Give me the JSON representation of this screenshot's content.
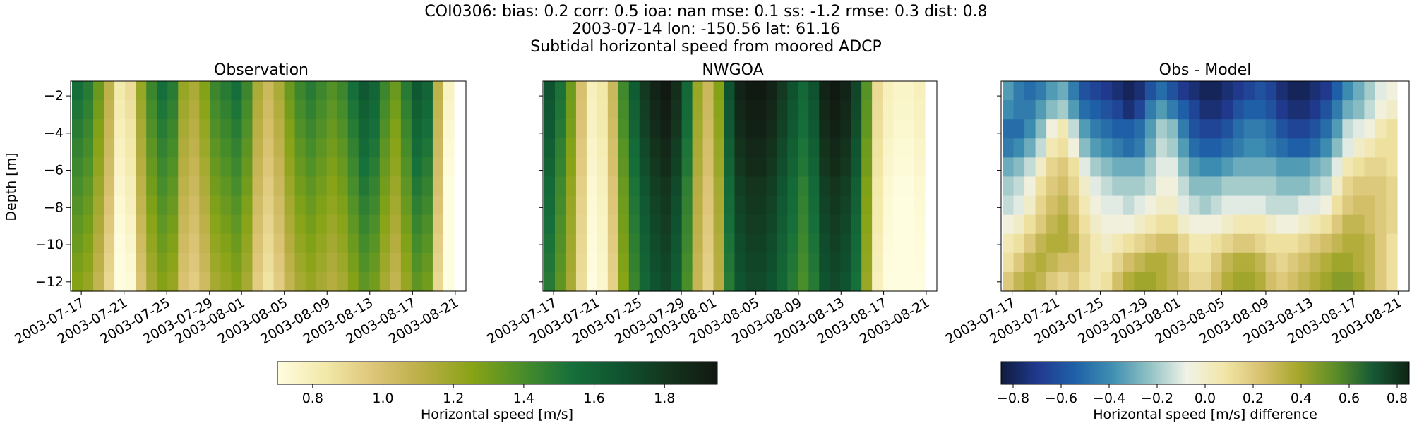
{
  "figure": {
    "title_lines": [
      "COI0306: bias: 0.2  corr: 0.5  ioa: nan  mse: 0.1  ss: -1.2  rmse: 0.3  dist: 0.8",
      "2003-07-14 lon: -150.56 lat: 61.16",
      "Subtidal horizontal speed from moored ADCP"
    ]
  },
  "chart_data": [
    {
      "type": "heatmap",
      "title": "Observation",
      "ylabel": "Depth [m]",
      "xlabel": "",
      "x_ticks": [
        "2003-07-17",
        "2003-07-21",
        "2003-07-25",
        "2003-07-29",
        "2003-08-01",
        "2003-08-05",
        "2003-08-09",
        "2003-08-13",
        "2003-08-17",
        "2003-08-21"
      ],
      "y_ticks": [
        -2,
        -4,
        -6,
        -8,
        -10,
        -12
      ],
      "ylim": [
        -12.5,
        -1.2
      ],
      "time_range": [
        "2003-07-16",
        "2003-08-22"
      ],
      "depth_range": [
        -12.5,
        -1.2
      ],
      "colormap": "speed",
      "rows": 11,
      "columns": 36,
      "values_by_day": [
        1.4,
        1.35,
        1.2,
        1.0,
        0.75,
        0.8,
        1.1,
        1.3,
        1.4,
        1.35,
        1.1,
        1.05,
        1.15,
        1.3,
        1.35,
        1.4,
        1.3,
        1.05,
        0.95,
        1.05,
        1.2,
        1.3,
        1.35,
        1.3,
        1.25,
        1.3,
        1.4,
        1.5,
        1.45,
        1.3,
        1.2,
        1.35,
        1.5,
        1.45,
        1.0,
        0.7
      ],
      "depth_factor": [
        1.1,
        1.08,
        1.06,
        1.04,
        1.02,
        1.0,
        0.98,
        0.96,
        0.94,
        0.92,
        0.9
      ],
      "grid": false
    },
    {
      "type": "heatmap",
      "title": "NWGOA",
      "xlabel": "",
      "x_ticks": [
        "2003-07-17",
        "2003-07-21",
        "2003-07-25",
        "2003-07-29",
        "2003-08-01",
        "2003-08-05",
        "2003-08-09",
        "2003-08-13",
        "2003-08-17",
        "2003-08-21"
      ],
      "y_ticks": [
        -2,
        -4,
        -6,
        -8,
        -10,
        -12
      ],
      "ylim": [
        -12.5,
        -1.2
      ],
      "time_range": [
        "2003-07-16",
        "2003-08-22"
      ],
      "depth_range": [
        -12.5,
        -1.2
      ],
      "colormap": "speed",
      "rows": 11,
      "columns": 36,
      "values_by_day": [
        1.6,
        1.45,
        1.25,
        0.95,
        0.75,
        0.8,
        1.0,
        1.35,
        1.55,
        1.7,
        1.8,
        1.85,
        1.75,
        1.5,
        1.15,
        1.0,
        1.2,
        1.6,
        1.8,
        1.85,
        1.85,
        1.8,
        1.7,
        1.6,
        1.5,
        1.6,
        1.8,
        1.85,
        1.8,
        1.65,
        1.3,
        0.85,
        0.75,
        0.72,
        0.72,
        0.75
      ],
      "depth_factor": [
        1.05,
        1.04,
        1.03,
        1.01,
        1.0,
        0.98,
        0.97,
        0.96,
        0.95,
        0.94,
        0.93
      ],
      "grid": false
    },
    {
      "type": "heatmap",
      "title": "Obs - Model",
      "xlabel": "",
      "x_ticks": [
        "2003-07-17",
        "2003-07-21",
        "2003-07-25",
        "2003-07-29",
        "2003-08-01",
        "2003-08-05",
        "2003-08-09",
        "2003-08-13",
        "2003-08-17",
        "2003-08-21"
      ],
      "y_ticks": [
        -2,
        -4,
        -6,
        -8,
        -10,
        -12
      ],
      "ylim": [
        -12.5,
        -1.2
      ],
      "time_range": [
        "2003-07-16",
        "2003-08-22"
      ],
      "depth_range": [
        -12.5,
        -1.2
      ],
      "colormap": "diff",
      "rows": 11,
      "columns": 36,
      "values_by_row": [
        [
          -0.35,
          -0.45,
          -0.5,
          -0.45,
          -0.35,
          -0.3,
          -0.45,
          -0.6,
          -0.65,
          -0.7,
          -0.75,
          -0.8,
          -0.75,
          -0.6,
          -0.5,
          -0.6,
          -0.7,
          -0.75,
          -0.8,
          -0.8,
          -0.75,
          -0.7,
          -0.65,
          -0.6,
          -0.65,
          -0.75,
          -0.8,
          -0.8,
          -0.75,
          -0.7,
          -0.55,
          -0.4,
          -0.3,
          -0.2,
          -0.1,
          -0.05
        ],
        [
          -0.4,
          -0.45,
          -0.45,
          -0.35,
          -0.25,
          -0.2,
          -0.35,
          -0.5,
          -0.55,
          -0.6,
          -0.65,
          -0.75,
          -0.65,
          -0.45,
          -0.35,
          -0.45,
          -0.55,
          -0.65,
          -0.75,
          -0.75,
          -0.7,
          -0.6,
          -0.55,
          -0.55,
          -0.6,
          -0.7,
          -0.75,
          -0.75,
          -0.7,
          -0.6,
          -0.45,
          -0.3,
          -0.25,
          -0.15,
          -0.05,
          0.0
        ],
        [
          -0.5,
          -0.5,
          -0.4,
          -0.25,
          -0.05,
          0.05,
          -0.15,
          -0.35,
          -0.45,
          -0.5,
          -0.55,
          -0.55,
          -0.5,
          -0.35,
          -0.2,
          -0.25,
          -0.45,
          -0.6,
          -0.65,
          -0.65,
          -0.6,
          -0.5,
          -0.45,
          -0.45,
          -0.5,
          -0.6,
          -0.65,
          -0.65,
          -0.6,
          -0.5,
          -0.35,
          -0.15,
          -0.1,
          -0.05,
          0.05,
          0.1
        ],
        [
          -0.45,
          -0.4,
          -0.3,
          -0.15,
          0.05,
          0.1,
          -0.05,
          -0.25,
          -0.35,
          -0.4,
          -0.45,
          -0.5,
          -0.45,
          -0.3,
          -0.15,
          -0.2,
          -0.35,
          -0.5,
          -0.55,
          -0.55,
          -0.5,
          -0.45,
          -0.4,
          -0.4,
          -0.45,
          -0.5,
          -0.55,
          -0.55,
          -0.5,
          -0.4,
          -0.25,
          -0.1,
          0.0,
          0.05,
          0.1,
          0.1
        ],
        [
          -0.3,
          -0.25,
          -0.15,
          0.0,
          0.15,
          0.2,
          0.1,
          -0.1,
          -0.2,
          -0.25,
          -0.3,
          -0.3,
          -0.3,
          -0.2,
          -0.1,
          -0.1,
          -0.25,
          -0.35,
          -0.4,
          -0.4,
          -0.35,
          -0.3,
          -0.3,
          -0.3,
          -0.3,
          -0.35,
          -0.35,
          -0.35,
          -0.3,
          -0.25,
          -0.1,
          0.05,
          0.1,
          0.15,
          0.15,
          0.1
        ],
        [
          -0.2,
          -0.15,
          -0.05,
          0.1,
          0.2,
          0.25,
          0.15,
          0.0,
          -0.1,
          -0.15,
          -0.2,
          -0.2,
          -0.2,
          -0.15,
          -0.05,
          -0.05,
          -0.15,
          -0.25,
          -0.25,
          -0.25,
          -0.2,
          -0.2,
          -0.2,
          -0.2,
          -0.2,
          -0.25,
          -0.25,
          -0.25,
          -0.2,
          -0.15,
          0.0,
          0.15,
          0.2,
          0.2,
          0.2,
          0.15
        ],
        [
          -0.15,
          -0.1,
          0.0,
          0.15,
          0.25,
          0.3,
          0.2,
          0.05,
          -0.05,
          -0.1,
          -0.1,
          -0.15,
          -0.1,
          -0.05,
          0.0,
          0.0,
          -0.1,
          -0.15,
          -0.2,
          -0.15,
          -0.1,
          -0.1,
          -0.1,
          -0.1,
          -0.15,
          -0.15,
          -0.15,
          -0.1,
          -0.1,
          -0.05,
          0.1,
          0.2,
          0.25,
          0.25,
          0.2,
          0.15
        ],
        [
          -0.05,
          0.0,
          0.1,
          0.2,
          0.3,
          0.35,
          0.25,
          0.1,
          0.0,
          -0.05,
          -0.05,
          -0.05,
          0.0,
          0.05,
          0.1,
          0.1,
          0.0,
          -0.05,
          -0.05,
          -0.05,
          0.0,
          0.05,
          0.05,
          0.05,
          0.0,
          -0.05,
          -0.05,
          0.0,
          0.05,
          0.1,
          0.2,
          0.3,
          0.3,
          0.25,
          0.2,
          0.15
        ],
        [
          0.05,
          0.1,
          0.2,
          0.3,
          0.35,
          0.35,
          0.3,
          0.15,
          0.05,
          0.0,
          0.05,
          0.1,
          0.15,
          0.2,
          0.25,
          0.25,
          0.15,
          0.05,
          0.05,
          0.1,
          0.15,
          0.2,
          0.2,
          0.15,
          0.1,
          0.1,
          0.1,
          0.15,
          0.2,
          0.25,
          0.3,
          0.35,
          0.35,
          0.3,
          0.2,
          0.1
        ],
        [
          0.1,
          0.2,
          0.3,
          0.35,
          0.3,
          0.25,
          0.25,
          0.15,
          0.05,
          0.05,
          0.15,
          0.25,
          0.3,
          0.35,
          0.35,
          0.3,
          0.2,
          0.1,
          0.1,
          0.2,
          0.3,
          0.35,
          0.35,
          0.3,
          0.2,
          0.15,
          0.2,
          0.25,
          0.3,
          0.35,
          0.4,
          0.4,
          0.35,
          0.3,
          0.2,
          0.1
        ],
        [
          0.2,
          0.3,
          0.35,
          0.3,
          0.2,
          0.15,
          0.2,
          0.1,
          0.05,
          0.1,
          0.25,
          0.35,
          0.4,
          0.4,
          0.35,
          0.3,
          0.25,
          0.15,
          0.15,
          0.25,
          0.35,
          0.4,
          0.4,
          0.35,
          0.25,
          0.2,
          0.25,
          0.3,
          0.35,
          0.4,
          0.45,
          0.45,
          0.4,
          0.3,
          0.2,
          0.1
        ]
      ],
      "grid": false
    }
  ],
  "colorbars": [
    {
      "label": "Horizontal speed [m/s]",
      "range": [
        0.7,
        1.95
      ],
      "ticks": [
        0.8,
        1.0,
        1.2,
        1.4,
        1.6,
        1.8
      ],
      "tick_labels": [
        "0.8",
        "1.0",
        "1.2",
        "1.4",
        "1.6",
        "1.8"
      ],
      "colormap": "speed"
    },
    {
      "label": "Horizontal speed [m/s] difference",
      "range": [
        -0.85,
        0.85
      ],
      "ticks": [
        -0.8,
        -0.6,
        -0.4,
        -0.2,
        0.0,
        0.2,
        0.4,
        0.6,
        0.8
      ],
      "tick_labels": [
        "−0.8",
        "−0.6",
        "−0.4",
        "−0.2",
        "0.0",
        "0.2",
        "0.4",
        "0.6",
        "0.8"
      ],
      "colormap": "diff"
    }
  ],
  "colormaps": {
    "speed": [
      "#fffde0",
      "#f2e8a8",
      "#dcc476",
      "#b9ae44",
      "#87a316",
      "#4a8e2a",
      "#16703a",
      "#0f5430",
      "#14341e",
      "#111811"
    ],
    "diff": [
      "#0f1b3f",
      "#213a8f",
      "#1f61a8",
      "#3f8fb1",
      "#91c2c4",
      "#f0f2e8",
      "#f2e6a8",
      "#d8c270",
      "#a7a72b",
      "#5c8e27",
      "#175a35",
      "#0f2315"
    ]
  }
}
